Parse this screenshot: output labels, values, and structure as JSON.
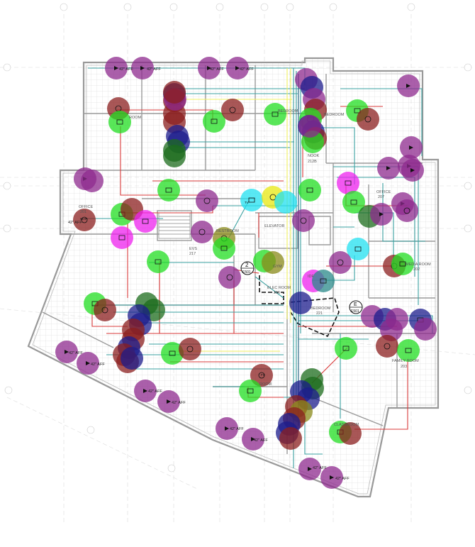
{
  "rooms": {
    "room_upper_left": "ROOM",
    "bedroom_upper_mid": "BEDROOM",
    "bedroom_upper_right": "BEDROOM",
    "nook": "NOOK",
    "nook_num": "212B",
    "office_left": "OFFICE",
    "office_left_num": "201",
    "office_right": "OFFICE",
    "office_right_num": "207",
    "evs": "EVS",
    "evs_num": "217",
    "restroom": "RESTROOM",
    "elevator": "ELEVATOR",
    "elec_room": "ELEC ROOM",
    "elec_room_num": "216",
    "idf": "IDF",
    "media_room": "MEDIA ROOM",
    "media_room_num": "202",
    "family_room": "FAMILY ROOM",
    "family_room_num": "203",
    "bedroom_center": "BEDROOM",
    "bedroom_center_num": "221",
    "room_lower_mid": "ROOM",
    "classroom": "CLASSROOM",
    "gym": "GYM"
  },
  "callouts": {
    "callout_2": "2",
    "callout_2_sheet": "E501",
    "callout_e": "E",
    "callout_e_sheet": "E501"
  },
  "aff_labels": {
    "a1": "42\" AFF",
    "a2": "42\" AFF",
    "a3": "42\" AFF",
    "a4": "42\" AFF",
    "a5": "42\" AFF",
    "a6": "42\" AFF",
    "a7": "42\" AFF",
    "a8": "42\" AFF",
    "a9": "42\" AFF",
    "a10": "42\" AFF",
    "a11": "42\" AFF",
    "a12": "42\" AFF",
    "a13": "42\" AFF"
  },
  "device_tags": {
    "wap": "WAP",
    "tv": "TV",
    "fs": "FS"
  },
  "colors": {
    "purple": "#8e2a8e",
    "green": "#22dd22",
    "darkred": "#8b1f1f",
    "navy": "#1c1c8c",
    "cyan": "#22e0f0",
    "magenta": "#ee22ee",
    "olive": "#8a8a1a",
    "yellow": "#e8e810",
    "teal": "#2a8a8a",
    "darkgreen": "#1c6c1c",
    "wire_red": "#d93a3a",
    "wire_teal": "#3aa0a0",
    "wire_yellow": "#f0f060",
    "wire_dblue": "#1a5a7a"
  }
}
